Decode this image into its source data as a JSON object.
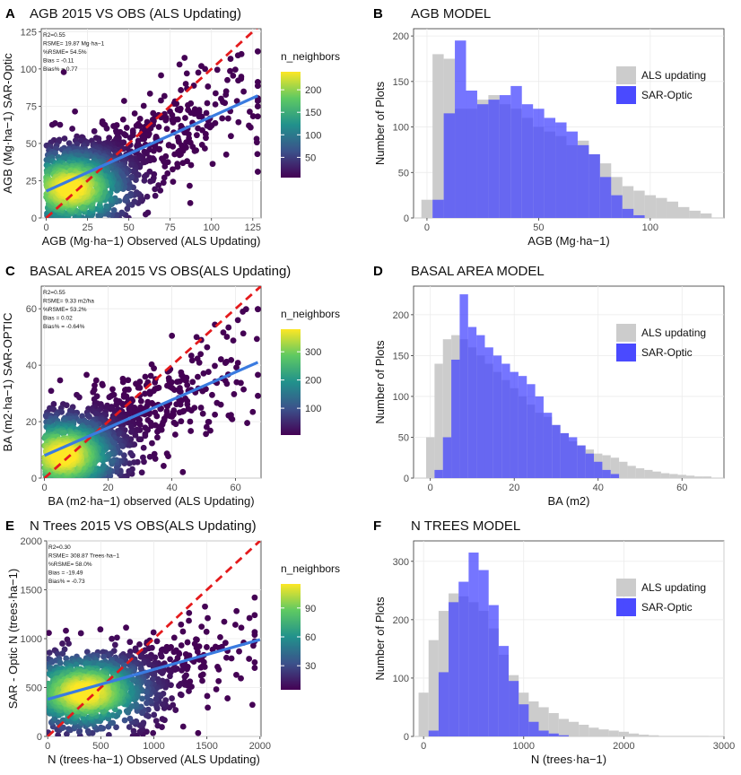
{
  "figure": {
    "panels": [
      "A",
      "B",
      "C",
      "D",
      "E",
      "F"
    ]
  },
  "chart_data": [
    {
      "panel": "A",
      "type": "scatter",
      "title": "AGB 2015 VS OBS (ALS Updating)",
      "xlabel": "AGB (Mg·ha−1) Observed (ALS Updating)",
      "ylabel": "AGB (Mg·ha−1) SAR-Optic",
      "xlim": [
        -3,
        130
      ],
      "ylim": [
        0,
        127
      ],
      "xticks": [
        0,
        25,
        50,
        75,
        100,
        125
      ],
      "yticks": [
        0,
        25,
        50,
        75,
        100,
        125
      ],
      "stats": [
        "R2=0.55",
        "RSME= 19.87 Mg·ha−1",
        "%RSME= 54.5%",
        "Bias = -0.11",
        "Bias% =  0.77"
      ],
      "fit": [
        [
          0,
          18
        ],
        [
          128,
          82
        ]
      ],
      "identity": [
        [
          0,
          0
        ],
        [
          130,
          130
        ]
      ],
      "legend_title": "n_neighbors",
      "colorbar_ticks": [
        50,
        100,
        150,
        200
      ],
      "colorbar_range": [
        5,
        240
      ],
      "cloud": {
        "center": [
          15,
          20
        ],
        "spread": [
          20,
          15
        ],
        "n": 1300,
        "slope": 0.5,
        "intercept": 18,
        "noise": 14,
        "xmax": 128
      }
    },
    {
      "panel": "B",
      "type": "bar",
      "title": "AGB MODEL",
      "xlabel": "AGB (Mg·ha−1)",
      "ylabel": "Number of Plots",
      "xlim": [
        -6,
        133
      ],
      "ylim": [
        0,
        208
      ],
      "xticks": [
        0,
        50,
        100
      ],
      "yticks": [
        0,
        50,
        100,
        150,
        200
      ],
      "binwidth": 5,
      "series": [
        {
          "name": "ALS updating",
          "color": "#cccccc",
          "bins": [
            [
              0,
              20
            ],
            [
              5,
              180
            ],
            [
              10,
              175
            ],
            [
              15,
              120
            ],
            [
              20,
              120
            ],
            [
              25,
              130
            ],
            [
              30,
              135
            ],
            [
              35,
              125
            ],
            [
              40,
              120
            ],
            [
              45,
              110
            ],
            [
              50,
              100
            ],
            [
              55,
              95
            ],
            [
              60,
              90
            ],
            [
              65,
              80
            ],
            [
              70,
              85
            ],
            [
              75,
              70
            ],
            [
              80,
              60
            ],
            [
              85,
              45
            ],
            [
              90,
              35
            ],
            [
              95,
              30
            ],
            [
              100,
              25
            ],
            [
              105,
              22
            ],
            [
              110,
              18
            ],
            [
              115,
              12
            ],
            [
              120,
              8
            ],
            [
              125,
              5
            ]
          ]
        },
        {
          "name": "SAR-Optic",
          "color": "#4040ff",
          "bins": [
            [
              5,
              20
            ],
            [
              10,
              115
            ],
            [
              15,
              195
            ],
            [
              20,
              140
            ],
            [
              25,
              125
            ],
            [
              30,
              130
            ],
            [
              35,
              135
            ],
            [
              40,
              145
            ],
            [
              45,
              125
            ],
            [
              50,
              120
            ],
            [
              55,
              110
            ],
            [
              60,
              105
            ],
            [
              65,
              95
            ],
            [
              70,
              80
            ],
            [
              75,
              70
            ],
            [
              80,
              45
            ],
            [
              85,
              25
            ],
            [
              90,
              10
            ],
            [
              95,
              3
            ]
          ]
        }
      ],
      "legend": [
        "ALS updating",
        "SAR-Optic"
      ]
    },
    {
      "panel": "C",
      "type": "scatter",
      "title": "BASAL AREA 2015 VS OBS(ALS Updating)",
      "xlabel": "BA (m2·ha−1) observed (ALS Updating)",
      "ylabel": "BA (m2·ha−1) SAR-OPTIC",
      "xlim": [
        -1,
        68
      ],
      "ylim": [
        0,
        68
      ],
      "xticks": [
        0,
        20,
        40,
        60
      ],
      "yticks": [
        0,
        20,
        40,
        60
      ],
      "stats": [
        "R2=0.55",
        "RSME= 9.33 m2/ha",
        "%RSME= 53.2%",
        "Bias = 0.02",
        "Bias% =  -0.64%"
      ],
      "fit": [
        [
          0,
          8
        ],
        [
          67,
          41
        ]
      ],
      "identity": [
        [
          0,
          0
        ],
        [
          68,
          68
        ]
      ],
      "legend_title": "n_neighbors",
      "colorbar_ticks": [
        100,
        200,
        300
      ],
      "colorbar_range": [
        5,
        380
      ],
      "cloud": {
        "center": [
          6,
          8
        ],
        "spread": [
          10,
          8
        ],
        "n": 1300,
        "slope": 0.5,
        "intercept": 8,
        "noise": 8,
        "xmax": 67
      }
    },
    {
      "panel": "D",
      "type": "bar",
      "title": "BASAL AREA MODEL",
      "xlabel": "BA (m2)",
      "ylabel": "Number of Plots",
      "xlim": [
        -4,
        70
      ],
      "ylim": [
        0,
        235
      ],
      "xticks": [
        0,
        20,
        40,
        60
      ],
      "yticks": [
        0,
        50,
        100,
        150,
        200
      ],
      "binwidth": 2,
      "series": [
        {
          "name": "ALS updating",
          "color": "#cccccc",
          "bins": [
            [
              0,
              50
            ],
            [
              2,
              140
            ],
            [
              4,
              170
            ],
            [
              6,
              175
            ],
            [
              8,
              170
            ],
            [
              10,
              160
            ],
            [
              12,
              150
            ],
            [
              14,
              140
            ],
            [
              16,
              130
            ],
            [
              18,
              120
            ],
            [
              20,
              110
            ],
            [
              22,
              100
            ],
            [
              24,
              90
            ],
            [
              26,
              80
            ],
            [
              28,
              75
            ],
            [
              30,
              65
            ],
            [
              32,
              55
            ],
            [
              34,
              45
            ],
            [
              36,
              40
            ],
            [
              38,
              35
            ],
            [
              40,
              30
            ],
            [
              42,
              28
            ],
            [
              44,
              25
            ],
            [
              46,
              20
            ],
            [
              48,
              15
            ],
            [
              50,
              12
            ],
            [
              52,
              10
            ],
            [
              54,
              8
            ],
            [
              56,
              6
            ],
            [
              58,
              5
            ],
            [
              60,
              4
            ],
            [
              62,
              3
            ],
            [
              64,
              2
            ],
            [
              66,
              2
            ]
          ]
        },
        {
          "name": "SAR-Optic",
          "color": "#4040ff",
          "bins": [
            [
              2,
              10
            ],
            [
              4,
              50
            ],
            [
              6,
              145
            ],
            [
              8,
              225
            ],
            [
              10,
              185
            ],
            [
              12,
              175
            ],
            [
              14,
              160
            ],
            [
              16,
              150
            ],
            [
              18,
              140
            ],
            [
              20,
              130
            ],
            [
              22,
              125
            ],
            [
              24,
              115
            ],
            [
              26,
              100
            ],
            [
              28,
              80
            ],
            [
              30,
              65
            ],
            [
              32,
              55
            ],
            [
              34,
              50
            ],
            [
              36,
              40
            ],
            [
              38,
              30
            ],
            [
              40,
              20
            ],
            [
              42,
              10
            ],
            [
              44,
              5
            ]
          ]
        }
      ],
      "legend": [
        "ALS updating",
        "SAR-Optic"
      ]
    },
    {
      "panel": "E",
      "type": "scatter",
      "title": "N Trees 2015 VS OBS(ALS Updating)",
      "xlabel": "N (trees·ha−1) Observed (ALS Updating)",
      "ylabel": "SAR - Optic N (trees·ha−1)",
      "xlim": [
        -10,
        2010
      ],
      "ylim": [
        0,
        2000
      ],
      "xticks": [
        0,
        500,
        1000,
        1500,
        2000
      ],
      "yticks": [
        0,
        500,
        1000,
        1500,
        2000
      ],
      "stats": [
        "R2=0.30",
        "RSME= 308.87 Trees·ha−1",
        "%RSME= 58.0%",
        "Bias = -19.49",
        "Bias% =  -0.73"
      ],
      "fit": [
        [
          0,
          380
        ],
        [
          2000,
          990
        ]
      ],
      "identity": [
        [
          0,
          0
        ],
        [
          2000,
          2000
        ]
      ],
      "legend_title": "n_neighbors",
      "colorbar_ticks": [
        30,
        60,
        90
      ],
      "colorbar_range": [
        5,
        115
      ],
      "cloud": {
        "center": [
          350,
          450
        ],
        "spread": [
          350,
          220
        ],
        "n": 1300,
        "slope": 0.3,
        "intercept": 380,
        "noise": 160,
        "xmax": 1950
      }
    },
    {
      "panel": "F",
      "type": "bar",
      "title": "N TREES MODEL",
      "xlabel": "N (trees·ha−1)",
      "ylabel": "Number of Plots",
      "xlim": [
        -100,
        3000
      ],
      "ylim": [
        0,
        335
      ],
      "xticks": [
        0,
        1000,
        2000,
        3000
      ],
      "yticks": [
        0,
        100,
        200,
        300
      ],
      "binwidth": 100,
      "series": [
        {
          "name": "ALS updating",
          "color": "#cccccc",
          "bins": [
            [
              0,
              75
            ],
            [
              100,
              165
            ],
            [
              200,
              215
            ],
            [
              300,
              245
            ],
            [
              400,
              240
            ],
            [
              500,
              230
            ],
            [
              600,
              215
            ],
            [
              700,
              185
            ],
            [
              800,
              140
            ],
            [
              900,
              105
            ],
            [
              1000,
              75
            ],
            [
              1100,
              60
            ],
            [
              1200,
              50
            ],
            [
              1300,
              40
            ],
            [
              1400,
              30
            ],
            [
              1500,
              25
            ],
            [
              1600,
              20
            ],
            [
              1700,
              15
            ],
            [
              1800,
              12
            ],
            [
              1900,
              10
            ],
            [
              2000,
              8
            ],
            [
              2100,
              5
            ],
            [
              2200,
              3
            ],
            [
              2300,
              2
            ],
            [
              2400,
              1
            ],
            [
              2500,
              1
            ],
            [
              2600,
              1
            ],
            [
              2700,
              1
            ],
            [
              2800,
              1
            ]
          ]
        },
        {
          "name": "SAR-Optic",
          "color": "#4040ff",
          "bins": [
            [
              100,
              10
            ],
            [
              200,
              110
            ],
            [
              300,
              230
            ],
            [
              400,
              265
            ],
            [
              500,
              315
            ],
            [
              600,
              285
            ],
            [
              700,
              225
            ],
            [
              800,
              155
            ],
            [
              900,
              95
            ],
            [
              1000,
              55
            ],
            [
              1100,
              25
            ],
            [
              1200,
              10
            ],
            [
              1300,
              5
            ],
            [
              1400,
              2
            ]
          ]
        }
      ],
      "legend": [
        "ALS updating",
        "SAR-Optic"
      ]
    }
  ]
}
